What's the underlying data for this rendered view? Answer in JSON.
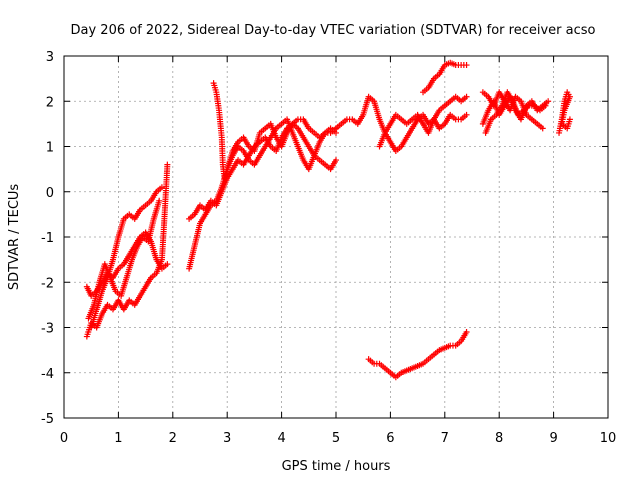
{
  "chart_data": {
    "type": "scatter",
    "title": "Day 206 of 2022, Sidereal Day-to-day VTEC variation (SDTVAR) for receiver acso",
    "xlabel": "GPS time / hours",
    "ylabel": "SDTVAR / TECUs",
    "xlim": [
      0,
      10
    ],
    "ylim": [
      -5,
      3
    ],
    "xticks": [
      "0",
      "1",
      "2",
      "3",
      "4",
      "5",
      "6",
      "7",
      "8",
      "9",
      "10"
    ],
    "yticks": [
      "-5",
      "-4",
      "-3",
      "-2",
      "-1",
      "0",
      "1",
      "2",
      "3"
    ],
    "grid": true,
    "marker": "plus",
    "color": "#ff0000",
    "series": [
      {
        "x": [
          0.42,
          0.5,
          0.6,
          0.7,
          0.8,
          0.9,
          1.0,
          1.1,
          1.2,
          1.3,
          1.4,
          1.5,
          1.6,
          1.7,
          1.8,
          1.85,
          1.9
        ],
        "y": [
          -3.2,
          -2.9,
          -3.0,
          -2.7,
          -2.5,
          -2.6,
          -2.4,
          -2.6,
          -2.4,
          -2.5,
          -2.3,
          -2.1,
          -1.9,
          -1.8,
          -1.5,
          -0.5,
          0.6
        ]
      },
      {
        "x": [
          0.42,
          0.5,
          0.6,
          0.7,
          0.8,
          0.9,
          1.0,
          1.1,
          1.2,
          1.3,
          1.4,
          1.5,
          1.6,
          1.7,
          1.8,
          1.9
        ],
        "y": [
          -2.1,
          -2.3,
          -2.2,
          -2.0,
          -1.8,
          -1.9,
          -1.7,
          -1.6,
          -1.4,
          -1.2,
          -1.0,
          -0.9,
          -1.1,
          -1.5,
          -1.7,
          -1.6
        ]
      },
      {
        "x": [
          0.5,
          0.6,
          0.7,
          0.8,
          0.9,
          1.0,
          1.1,
          1.2,
          1.3,
          1.4,
          1.5,
          1.6,
          1.7,
          1.8
        ],
        "y": [
          -3.0,
          -2.6,
          -2.2,
          -1.9,
          -1.5,
          -1.0,
          -0.6,
          -0.5,
          -0.6,
          -0.4,
          -0.3,
          -0.2,
          0.0,
          0.1
        ]
      },
      {
        "x": [
          0.45,
          0.55,
          0.65,
          0.75,
          0.85,
          0.95,
          1.05,
          1.15,
          1.25,
          1.35,
          1.45,
          1.55,
          1.65,
          1.75
        ],
        "y": [
          -2.8,
          -2.5,
          -2.0,
          -1.6,
          -1.9,
          -2.2,
          -2.3,
          -1.9,
          -1.5,
          -1.2,
          -1.0,
          -1.1,
          -0.6,
          -0.2
        ]
      },
      {
        "x": [
          2.3,
          2.4,
          2.5,
          2.6,
          2.7,
          2.8,
          2.9,
          3.0,
          3.1,
          3.2,
          3.3,
          3.4,
          3.5,
          3.6,
          3.7,
          3.8,
          3.9,
          4.0,
          4.1,
          4.2,
          4.3,
          4.4,
          4.5,
          4.6,
          4.7,
          4.8,
          4.9,
          5.0
        ],
        "y": [
          -0.6,
          -0.5,
          -0.3,
          -0.4,
          -0.2,
          -0.3,
          0.0,
          0.3,
          0.5,
          0.7,
          0.6,
          0.8,
          1.0,
          1.1,
          1.2,
          1.0,
          0.9,
          1.2,
          1.4,
          1.5,
          1.4,
          1.2,
          1.0,
          0.8,
          0.7,
          0.6,
          0.5,
          0.7
        ]
      },
      {
        "x": [
          2.3,
          2.4,
          2.5,
          2.6,
          2.7,
          2.8,
          2.9,
          3.0,
          3.1,
          3.2,
          3.3,
          3.4,
          3.5,
          3.6,
          3.7,
          3.8,
          3.9,
          4.0,
          4.1,
          4.2,
          4.3,
          4.4,
          4.5,
          4.6,
          4.7,
          4.8,
          4.9,
          5.0
        ],
        "y": [
          -1.7,
          -1.2,
          -0.7,
          -0.5,
          -0.3,
          -0.2,
          0.1,
          0.5,
          0.8,
          1.0,
          0.9,
          0.7,
          0.6,
          0.8,
          1.0,
          1.2,
          1.4,
          1.5,
          1.6,
          1.3,
          1.0,
          0.7,
          0.5,
          0.8,
          1.1,
          1.3,
          1.4,
          1.3
        ]
      },
      {
        "x": [
          2.75,
          2.8,
          2.85,
          2.9,
          2.92,
          2.95,
          3.0,
          3.1,
          3.2,
          3.3,
          3.4,
          3.5,
          3.6,
          3.7,
          3.8,
          3.9,
          4.0,
          4.1,
          4.2,
          4.3,
          4.4,
          4.5,
          4.6,
          4.7,
          4.8,
          4.9,
          5.0
        ],
        "y": [
          2.4,
          2.2,
          1.8,
          1.2,
          0.6,
          0.3,
          0.5,
          0.9,
          1.1,
          1.2,
          1.0,
          0.9,
          1.3,
          1.4,
          1.5,
          1.2,
          1.0,
          1.3,
          1.5,
          1.6,
          1.6,
          1.4,
          1.3,
          1.2,
          1.3,
          1.3,
          1.4
        ]
      },
      {
        "x": [
          5.0,
          5.1,
          5.2,
          5.3,
          5.4,
          5.5,
          5.6,
          5.7,
          5.8,
          5.9,
          6.0,
          6.1,
          6.2,
          6.3,
          6.4,
          6.5,
          6.6,
          6.7,
          6.8,
          6.9,
          7.0,
          7.1,
          7.2,
          7.3,
          7.4
        ],
        "y": [
          1.4,
          1.5,
          1.6,
          1.6,
          1.5,
          1.7,
          2.1,
          2.0,
          1.6,
          1.3,
          1.5,
          1.7,
          1.6,
          1.5,
          1.6,
          1.7,
          1.5,
          1.3,
          1.6,
          1.4,
          1.5,
          1.7,
          1.6,
          1.6,
          1.7
        ]
      },
      {
        "x": [
          5.8,
          5.9,
          6.0,
          6.1,
          6.2,
          6.3,
          6.4,
          6.5,
          6.6,
          6.7,
          6.8,
          6.9,
          7.0,
          7.1,
          7.2,
          7.3,
          7.4
        ],
        "y": [
          1.0,
          1.3,
          1.1,
          0.9,
          1.0,
          1.2,
          1.4,
          1.6,
          1.7,
          1.5,
          1.6,
          1.8,
          1.9,
          2.0,
          2.1,
          2.0,
          2.1
        ]
      },
      {
        "x": [
          5.6,
          5.7,
          5.8,
          5.9,
          6.0,
          6.1,
          6.2,
          6.3,
          6.4,
          6.5,
          6.6,
          6.7,
          6.8,
          6.9,
          7.0,
          7.1,
          7.2,
          7.3,
          7.4
        ],
        "y": [
          -3.7,
          -3.8,
          -3.8,
          -3.9,
          -4.0,
          -4.1,
          -4.0,
          -3.95,
          -3.9,
          -3.85,
          -3.8,
          -3.7,
          -3.6,
          -3.5,
          -3.45,
          -3.4,
          -3.4,
          -3.3,
          -3.1
        ]
      },
      {
        "x": [
          6.6,
          6.7,
          6.8,
          6.9,
          7.0,
          7.1,
          7.2,
          7.3,
          7.4
        ],
        "y": [
          2.2,
          2.3,
          2.5,
          2.6,
          2.8,
          2.85,
          2.8,
          2.8,
          2.8
        ]
      },
      {
        "x": [
          7.7,
          7.8,
          7.9,
          8.0,
          8.1,
          8.2,
          8.3,
          8.4,
          8.5,
          8.6,
          8.7,
          8.8,
          8.9
        ],
        "y": [
          1.5,
          1.8,
          2.0,
          1.7,
          1.9,
          2.1,
          1.8,
          1.6,
          1.9,
          2.0,
          1.8,
          1.9,
          2.0
        ]
      },
      {
        "x": [
          7.7,
          7.8,
          7.9,
          8.0,
          8.1,
          8.2,
          8.3,
          8.4,
          8.5,
          8.6,
          8.7,
          8.8
        ],
        "y": [
          2.2,
          2.1,
          1.9,
          2.2,
          2.0,
          1.8,
          2.1,
          2.0,
          1.7,
          1.6,
          1.5,
          1.4
        ]
      },
      {
        "x": [
          7.75,
          7.85,
          7.95,
          8.05,
          8.15,
          8.25,
          8.35,
          8.45,
          8.55,
          8.65,
          8.75,
          8.85
        ],
        "y": [
          1.3,
          1.6,
          1.7,
          1.9,
          2.2,
          2.0,
          1.7,
          1.8,
          1.9,
          1.9,
          1.8,
          1.9
        ]
      },
      {
        "x": [
          9.1,
          9.15,
          9.2,
          9.25,
          9.3,
          9.2,
          9.15,
          9.25,
          9.3
        ],
        "y": [
          1.3,
          1.6,
          2.0,
          2.2,
          2.1,
          1.8,
          1.5,
          1.4,
          1.6
        ]
      }
    ]
  }
}
